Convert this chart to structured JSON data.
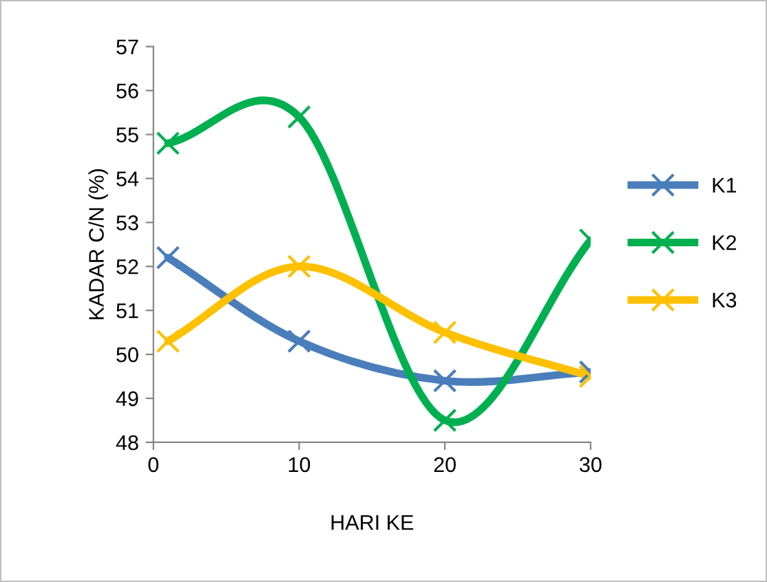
{
  "chart_data": {
    "type": "line",
    "xlabel": "HARI KE",
    "ylabel": "KADAR C/N (%)",
    "x": [
      1,
      10,
      20,
      30
    ],
    "series": [
      {
        "name": "K1",
        "color": "#4a7ebb",
        "values": [
          52.2,
          50.3,
          49.4,
          49.6
        ]
      },
      {
        "name": "K2",
        "color": "#00b050",
        "values": [
          54.8,
          55.4,
          48.5,
          52.6
        ]
      },
      {
        "name": "K3",
        "color": "#ffc000",
        "values": [
          50.3,
          52.0,
          50.5,
          49.5
        ]
      }
    ],
    "xlim": [
      0,
      30
    ],
    "xticks": [
      0,
      10,
      20,
      30
    ],
    "ylim": [
      48,
      57
    ],
    "yticks": [
      48,
      49,
      50,
      51,
      52,
      53,
      54,
      55,
      56,
      57
    ],
    "grid": false,
    "legend": "right",
    "marker": "cross",
    "line_style": "solid"
  }
}
